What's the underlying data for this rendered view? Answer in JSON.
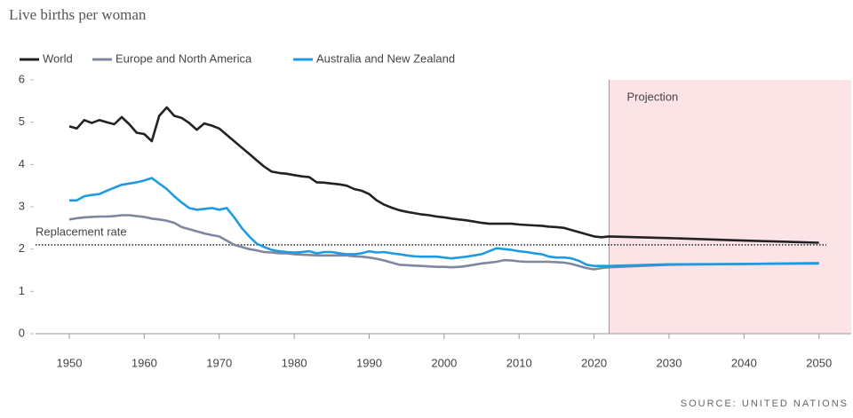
{
  "chart_data": {
    "type": "line",
    "title": "Live births per woman",
    "source": "SOURCE: UNITED NATIONS",
    "x": [
      1950,
      1951,
      1952,
      1953,
      1954,
      1955,
      1956,
      1957,
      1958,
      1959,
      1960,
      1961,
      1962,
      1963,
      1964,
      1965,
      1966,
      1967,
      1968,
      1969,
      1970,
      1971,
      1972,
      1973,
      1974,
      1975,
      1976,
      1977,
      1978,
      1979,
      1980,
      1981,
      1982,
      1983,
      1984,
      1985,
      1986,
      1987,
      1988,
      1989,
      1990,
      1991,
      1992,
      1993,
      1994,
      1995,
      1996,
      1997,
      1998,
      1999,
      2000,
      2001,
      2002,
      2003,
      2004,
      2005,
      2006,
      2007,
      2008,
      2009,
      2010,
      2011,
      2012,
      2013,
      2014,
      2015,
      2016,
      2017,
      2018,
      2019,
      2020,
      2021,
      2022,
      2030,
      2040,
      2050
    ],
    "series": [
      {
        "name": "World",
        "color": "#222222",
        "values": [
          4.9,
          4.85,
          5.05,
          4.98,
          5.05,
          5.0,
          4.95,
          5.12,
          4.95,
          4.75,
          4.72,
          4.55,
          5.15,
          5.35,
          5.15,
          5.1,
          4.98,
          4.82,
          4.97,
          4.92,
          4.85,
          4.7,
          4.55,
          4.4,
          4.25,
          4.1,
          3.95,
          3.83,
          3.8,
          3.78,
          3.75,
          3.72,
          3.7,
          3.58,
          3.57,
          3.55,
          3.53,
          3.5,
          3.42,
          3.38,
          3.3,
          3.15,
          3.05,
          2.98,
          2.92,
          2.88,
          2.85,
          2.82,
          2.8,
          2.77,
          2.75,
          2.72,
          2.7,
          2.68,
          2.65,
          2.62,
          2.6,
          2.6,
          2.6,
          2.6,
          2.58,
          2.57,
          2.56,
          2.55,
          2.53,
          2.52,
          2.5,
          2.45,
          2.4,
          2.35,
          2.3,
          2.28,
          2.3,
          2.26,
          2.2,
          2.15
        ]
      },
      {
        "name": "Europe and North America",
        "color": "#7e86a0",
        "values": [
          2.7,
          2.73,
          2.75,
          2.76,
          2.77,
          2.77,
          2.78,
          2.8,
          2.8,
          2.78,
          2.76,
          2.72,
          2.7,
          2.67,
          2.62,
          2.52,
          2.47,
          2.42,
          2.37,
          2.33,
          2.3,
          2.2,
          2.1,
          2.05,
          2.0,
          1.97,
          1.93,
          1.92,
          1.9,
          1.9,
          1.88,
          1.87,
          1.86,
          1.85,
          1.85,
          1.85,
          1.85,
          1.85,
          1.83,
          1.82,
          1.8,
          1.77,
          1.73,
          1.68,
          1.63,
          1.62,
          1.61,
          1.6,
          1.59,
          1.58,
          1.58,
          1.57,
          1.58,
          1.6,
          1.63,
          1.66,
          1.68,
          1.7,
          1.74,
          1.73,
          1.71,
          1.7,
          1.7,
          1.7,
          1.7,
          1.69,
          1.68,
          1.65,
          1.6,
          1.55,
          1.52,
          1.55,
          1.57,
          1.63,
          1.65,
          1.67
        ]
      },
      {
        "name": "Australia and New Zealand",
        "color": "#1e9be0",
        "values": [
          3.15,
          3.15,
          3.25,
          3.28,
          3.3,
          3.38,
          3.45,
          3.52,
          3.55,
          3.58,
          3.62,
          3.68,
          3.55,
          3.42,
          3.25,
          3.1,
          2.97,
          2.93,
          2.95,
          2.97,
          2.93,
          2.97,
          2.75,
          2.5,
          2.3,
          2.13,
          2.05,
          1.98,
          1.95,
          1.93,
          1.92,
          1.93,
          1.95,
          1.9,
          1.93,
          1.93,
          1.9,
          1.88,
          1.88,
          1.9,
          1.95,
          1.92,
          1.93,
          1.9,
          1.88,
          1.85,
          1.83,
          1.82,
          1.82,
          1.82,
          1.8,
          1.78,
          1.8,
          1.82,
          1.85,
          1.88,
          1.95,
          2.02,
          2.0,
          1.98,
          1.95,
          1.93,
          1.9,
          1.88,
          1.82,
          1.8,
          1.8,
          1.78,
          1.72,
          1.63,
          1.6,
          1.6,
          1.6,
          1.64,
          1.65,
          1.66
        ]
      }
    ],
    "xlim": [
      1945.5,
      2054.3
    ],
    "xticks": [
      1950,
      1960,
      1970,
      1980,
      1990,
      2000,
      2010,
      2020,
      2030,
      2040,
      2050
    ],
    "ylim": [
      0,
      6
    ],
    "yticks": [
      0,
      1,
      2,
      3,
      4,
      5,
      6
    ],
    "replacement_line": {
      "label": "Replacement rate",
      "value": 2.1
    },
    "projection": {
      "label": "Projection",
      "start": 2022,
      "color": "#fbe3e6"
    }
  }
}
